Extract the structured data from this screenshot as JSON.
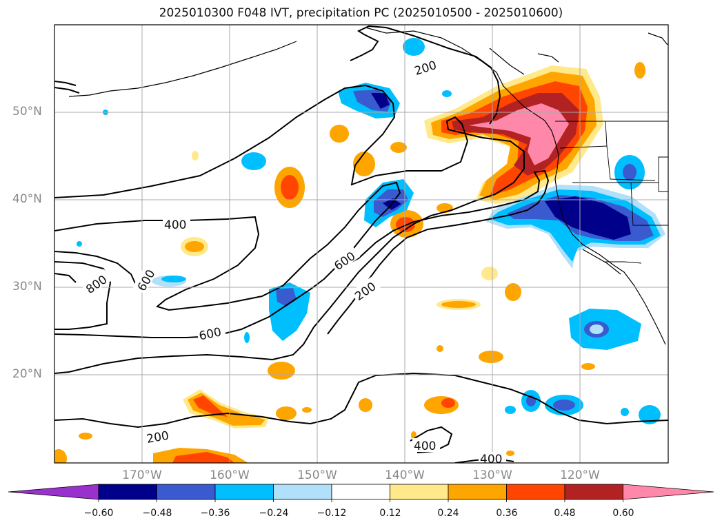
{
  "title": "2025010300 F048 IVT, precipitation PC (2025010500 - 2025010600)",
  "lat_labels": [
    "50°N",
    "40°N",
    "30°N",
    "20°N"
  ],
  "lon_labels": [
    "170°W",
    "160°W",
    "150°W",
    "140°W",
    "130°W",
    "120°W"
  ],
  "contour_labels": [
    "200",
    "400",
    "600",
    "800",
    "600",
    "600",
    "200",
    "200",
    "400",
    "400"
  ],
  "colorbar": {
    "ticks": [
      "−0.60",
      "−0.48",
      "−0.36",
      "−0.24",
      "−0.12",
      "0.12",
      "0.24",
      "0.36",
      "0.48",
      "0.60"
    ],
    "colors": [
      "#9932cc",
      "#00008b",
      "#3a5bd0",
      "#00bfff",
      "#b0e0fa",
      "#ffffff",
      "#ffe98a",
      "#ffa500",
      "#ff4500",
      "#b22222",
      "#ff88aa"
    ]
  }
}
